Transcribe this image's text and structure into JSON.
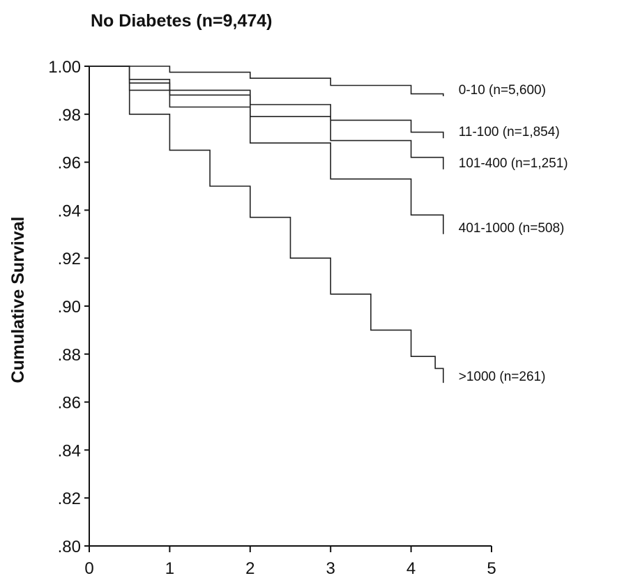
{
  "chart_data": {
    "type": "line",
    "title": "No Diabetes (n=9,474)",
    "xlabel": "",
    "ylabel": "Cumulative Survival",
    "xlim": [
      0,
      5
    ],
    "ylim": [
      0.8,
      1.0
    ],
    "x_ticks": [
      {
        "value": 0,
        "label": "0"
      },
      {
        "value": 1,
        "label": "1"
      },
      {
        "value": 2,
        "label": "2"
      },
      {
        "value": 3,
        "label": "3"
      },
      {
        "value": 4,
        "label": "4"
      },
      {
        "value": 5,
        "label": "5"
      }
    ],
    "y_ticks": [
      {
        "value": 1.0,
        "label": "1.00"
      },
      {
        "value": 0.98,
        "label": ".98"
      },
      {
        "value": 0.96,
        "label": ".96"
      },
      {
        "value": 0.94,
        "label": ".94"
      },
      {
        "value": 0.92,
        "label": ".92"
      },
      {
        "value": 0.9,
        "label": ".90"
      },
      {
        "value": 0.88,
        "label": ".88"
      },
      {
        "value": 0.86,
        "label": ".86"
      },
      {
        "value": 0.84,
        "label": ".84"
      },
      {
        "value": 0.82,
        "label": ".82"
      },
      {
        "value": 0.8,
        "label": ".80"
      }
    ],
    "grid": false,
    "legend": "direct labels at right end of each line",
    "series": [
      {
        "name": "0-10 (n=5,600)",
        "x": [
          0,
          1,
          2,
          3,
          4,
          4.4
        ],
        "y": [
          1.0,
          0.9975,
          0.995,
          0.992,
          0.9885,
          0.9875
        ]
      },
      {
        "name": "11-100 (n=1,854)",
        "x": [
          0,
          0.5,
          1,
          2,
          3,
          4,
          4.4
        ],
        "y": [
          1.0,
          0.9945,
          0.99,
          0.984,
          0.9775,
          0.9725,
          0.97
        ]
      },
      {
        "name": "101-400 (n=1,251)",
        "x": [
          0,
          0.5,
          1,
          2,
          3,
          4,
          4.4
        ],
        "y": [
          1.0,
          0.993,
          0.988,
          0.979,
          0.969,
          0.962,
          0.957
        ]
      },
      {
        "name": "401-1000 (n=508)",
        "x": [
          0,
          0.5,
          1,
          2,
          3,
          4,
          4.4
        ],
        "y": [
          1.0,
          0.99,
          0.983,
          0.968,
          0.953,
          0.938,
          0.93
        ]
      },
      {
        "name": ">1000 (n=261)",
        "x": [
          0,
          0.5,
          1,
          1.5,
          2,
          2.5,
          3,
          3.5,
          4,
          4.3,
          4.4
        ],
        "y": [
          1.0,
          0.98,
          0.965,
          0.95,
          0.937,
          0.92,
          0.905,
          0.89,
          0.879,
          0.874,
          0.868
        ]
      }
    ]
  }
}
